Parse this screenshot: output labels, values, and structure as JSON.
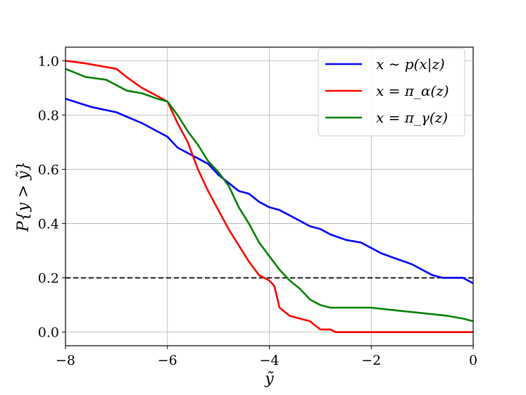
{
  "chart_data": {
    "type": "line",
    "xlabel": "ỹ",
    "ylabel": "P{y > ỹ}",
    "xlim": [
      -8,
      0
    ],
    "ylim": [
      -0.05,
      1.05
    ],
    "xticks": [
      -8,
      -6,
      -4,
      -2,
      0
    ],
    "xtick_labels": [
      "−8",
      "−6",
      "−4",
      "−2",
      "0"
    ],
    "yticks": [
      0.0,
      0.2,
      0.4,
      0.6,
      0.8,
      1.0
    ],
    "ytick_labels": [
      "0.0",
      "0.2",
      "0.4",
      "0.6",
      "0.8",
      "1.0"
    ],
    "grid": true,
    "legend_position": "top-right",
    "reference_line": {
      "y": 0.2,
      "style": "dashed",
      "color": "#000000"
    },
    "series": [
      {
        "name": "x ∼ p(x|z)",
        "color": "#0000ff",
        "x": [
          -8,
          -7.5,
          -7,
          -6.5,
          -6.2,
          -6,
          -5.8,
          -5.5,
          -5.2,
          -5.0,
          -4.8,
          -4.6,
          -4.4,
          -4.2,
          -4.0,
          -3.8,
          -3.5,
          -3.2,
          -3.0,
          -2.8,
          -2.5,
          -2.2,
          -2.0,
          -1.8,
          -1.5,
          -1.2,
          -1.0,
          -0.8,
          -0.6,
          -0.4,
          -0.2,
          0
        ],
        "y": [
          0.86,
          0.83,
          0.81,
          0.77,
          0.74,
          0.72,
          0.68,
          0.65,
          0.62,
          0.58,
          0.55,
          0.52,
          0.51,
          0.48,
          0.46,
          0.45,
          0.42,
          0.39,
          0.38,
          0.36,
          0.34,
          0.33,
          0.31,
          0.29,
          0.27,
          0.25,
          0.23,
          0.21,
          0.2,
          0.2,
          0.2,
          0.18
        ]
      },
      {
        "name": "x = π_α(z)",
        "color": "#ff0000",
        "x": [
          -8,
          -7.6,
          -7.3,
          -7.0,
          -6.8,
          -6.5,
          -6.2,
          -6.0,
          -5.8,
          -5.6,
          -5.4,
          -5.2,
          -5.0,
          -4.8,
          -4.6,
          -4.4,
          -4.2,
          -4.0,
          -3.9,
          -3.8,
          -3.6,
          -3.4,
          -3.2,
          -3.0,
          -2.8,
          -2.7,
          -2.0,
          -1.0,
          0
        ],
        "y": [
          1.0,
          0.99,
          0.98,
          0.97,
          0.94,
          0.9,
          0.87,
          0.85,
          0.77,
          0.7,
          0.6,
          0.52,
          0.45,
          0.38,
          0.32,
          0.26,
          0.21,
          0.19,
          0.17,
          0.09,
          0.06,
          0.05,
          0.04,
          0.01,
          0.01,
          0.0,
          0.0,
          0.0,
          0.0
        ]
      },
      {
        "name": "x = π_γ(z)",
        "color": "#008000",
        "x": [
          -8,
          -7.6,
          -7.2,
          -7.0,
          -6.8,
          -6.5,
          -6.2,
          -6.0,
          -5.8,
          -5.6,
          -5.4,
          -5.2,
          -5.0,
          -4.8,
          -4.6,
          -4.4,
          -4.2,
          -4.0,
          -3.8,
          -3.6,
          -3.4,
          -3.2,
          -3.0,
          -2.8,
          -2.5,
          -2.0,
          -1.5,
          -1.0,
          -0.5,
          -0.2,
          0
        ],
        "y": [
          0.97,
          0.94,
          0.93,
          0.91,
          0.89,
          0.88,
          0.86,
          0.85,
          0.8,
          0.74,
          0.69,
          0.63,
          0.59,
          0.54,
          0.46,
          0.4,
          0.33,
          0.28,
          0.23,
          0.19,
          0.16,
          0.12,
          0.1,
          0.09,
          0.09,
          0.09,
          0.08,
          0.07,
          0.06,
          0.05,
          0.04
        ]
      }
    ]
  }
}
